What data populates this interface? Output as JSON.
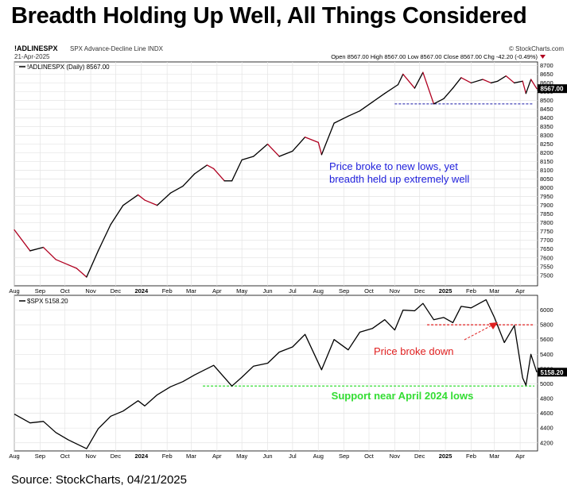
{
  "headline": "Breadth Holding Up Well, All Things Considered",
  "source": "Source: StockCharts, 04/21/2025",
  "header": {
    "symbol": "!ADLINESPX",
    "description": "SPX Advance-Decline Line INDX",
    "date": "21-Apr-2025",
    "brand": "© StockCharts.com",
    "ohlc_text": "Open 8567.00  High 8567.00  Low 8567.00  Close 8567.00  Chg -42.20 (-0.49%)"
  },
  "chart_data": [
    {
      "type": "line",
      "legend": "!ADLINESPX (Daily) 8567.00",
      "last_value_label": "8567.00",
      "x_tick_labels": [
        "Aug",
        "Sep",
        "Oct",
        "Nov",
        "Dec",
        "2024",
        "Feb",
        "Mar",
        "Apr",
        "May",
        "Jun",
        "Jul",
        "Aug",
        "Sep",
        "Oct",
        "Nov",
        "Dec",
        "2025",
        "Feb",
        "Mar",
        "Apr"
      ],
      "ylim": [
        7440,
        8720
      ],
      "y_ticks": [
        7500,
        7550,
        7600,
        7650,
        7700,
        7750,
        7800,
        7850,
        7900,
        7950,
        8000,
        8050,
        8100,
        8150,
        8200,
        8250,
        8300,
        8350,
        8400,
        8450,
        8500,
        8550,
        8600,
        8650,
        8700
      ],
      "x": [
        "2023-08-01",
        "2023-08-20",
        "2023-09-05",
        "2023-09-20",
        "2023-10-05",
        "2023-10-15",
        "2023-10-27",
        "2023-11-10",
        "2023-11-25",
        "2023-12-10",
        "2023-12-28",
        "2024-01-05",
        "2024-01-20",
        "2024-02-05",
        "2024-02-20",
        "2024-03-05",
        "2024-03-20",
        "2024-03-28",
        "2024-04-10",
        "2024-04-19",
        "2024-05-01",
        "2024-05-15",
        "2024-06-01",
        "2024-06-15",
        "2024-07-01",
        "2024-07-16",
        "2024-08-01",
        "2024-08-05",
        "2024-08-20",
        "2024-09-06",
        "2024-09-20",
        "2024-10-05",
        "2024-10-20",
        "2024-11-05",
        "2024-11-11",
        "2024-11-25",
        "2024-12-05",
        "2024-12-18",
        "2024-12-30",
        "2025-01-10",
        "2025-01-20",
        "2025-02-01",
        "2025-02-15",
        "2025-02-25",
        "2025-03-05",
        "2025-03-15",
        "2025-03-25",
        "2025-04-04",
        "2025-04-08",
        "2025-04-14",
        "2025-04-21"
      ],
      "y": [
        7760,
        7640,
        7660,
        7590,
        7560,
        7540,
        7490,
        7640,
        7790,
        7900,
        7960,
        7930,
        7900,
        7970,
        8010,
        8080,
        8130,
        8110,
        8040,
        8040,
        8160,
        8180,
        8250,
        8180,
        8210,
        8290,
        8260,
        8190,
        8370,
        8410,
        8440,
        8490,
        8540,
        8590,
        8650,
        8570,
        8660,
        8480,
        8510,
        8570,
        8630,
        8600,
        8620,
        8600,
        8610,
        8640,
        8600,
        8610,
        8540,
        8620,
        8567
      ],
      "annotation": "Price broke to new lows, yet breadth held up extremely well",
      "support_level": 8480,
      "colors": {
        "rising": "#000000",
        "falling": "#b00020",
        "reference": "#1a1aa8",
        "annotation": "#1f1fdc"
      }
    },
    {
      "type": "line",
      "legend": "$SPX 5158.20",
      "last_value_label": "5158.20",
      "x_tick_labels": [
        "Aug",
        "Sep",
        "Oct",
        "Nov",
        "Dec",
        "2024",
        "Feb",
        "Mar",
        "Apr",
        "May",
        "Jun",
        "Jul",
        "Aug",
        "Sep",
        "Oct",
        "Nov",
        "Dec",
        "2025",
        "Feb",
        "Mar",
        "Apr"
      ],
      "ylim": [
        4090,
        6200
      ],
      "y_ticks": [
        4200,
        4400,
        4600,
        4800,
        5000,
        5200,
        5400,
        5600,
        5800,
        6000
      ],
      "x": [
        "2023-08-01",
        "2023-08-20",
        "2023-09-05",
        "2023-09-20",
        "2023-10-05",
        "2023-10-27",
        "2023-11-10",
        "2023-11-25",
        "2023-12-10",
        "2023-12-28",
        "2024-01-05",
        "2024-01-20",
        "2024-02-05",
        "2024-02-20",
        "2024-03-05",
        "2024-03-28",
        "2024-04-19",
        "2024-05-01",
        "2024-05-15",
        "2024-06-01",
        "2024-06-15",
        "2024-07-01",
        "2024-07-16",
        "2024-08-05",
        "2024-08-20",
        "2024-09-06",
        "2024-09-20",
        "2024-10-05",
        "2024-10-20",
        "2024-11-01",
        "2024-11-11",
        "2024-11-25",
        "2024-12-05",
        "2024-12-18",
        "2024-12-30",
        "2025-01-10",
        "2025-01-20",
        "2025-02-01",
        "2025-02-19",
        "2025-03-01",
        "2025-03-13",
        "2025-03-25",
        "2025-04-04",
        "2025-04-08",
        "2025-04-14",
        "2025-04-21"
      ],
      "y": [
        4590,
        4470,
        4490,
        4340,
        4240,
        4120,
        4390,
        4560,
        4630,
        4770,
        4700,
        4850,
        4960,
        5030,
        5120,
        5250,
        4970,
        5090,
        5240,
        5280,
        5430,
        5500,
        5670,
        5190,
        5600,
        5460,
        5700,
        5750,
        5870,
        5730,
        6000,
        5990,
        6090,
        5870,
        5900,
        5830,
        6050,
        6030,
        6140,
        5900,
        5560,
        5790,
        5080,
        4980,
        5400,
        5158
      ],
      "annotations": [
        "Price broke down",
        "Support near April 2024 lows"
      ],
      "breakdown_level": 5800,
      "support_level": 4970,
      "colors": {
        "price": "#000000",
        "breakdown": "#e02020",
        "support": "#33dd33"
      }
    }
  ]
}
